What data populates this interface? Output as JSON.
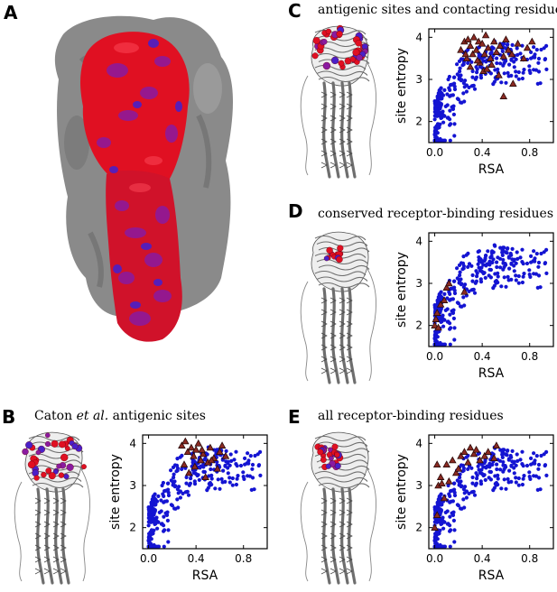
{
  "panels": {
    "A": {
      "letter": "A"
    },
    "B": {
      "letter": "B",
      "caption_pre": "Caton ",
      "caption_em": "et al.",
      "caption_post": " antigenic sites"
    },
    "C": {
      "letter": "C",
      "caption": "antigenic sites and contacting residues"
    },
    "D": {
      "letter": "D",
      "caption": "conserved receptor-binding residues"
    },
    "E": {
      "letter": "E",
      "caption": "all receptor-binding residues"
    }
  },
  "colors": {
    "blue_points": "#1414d2",
    "triangle_fill": "#8a2a22",
    "triangle_edge": "#2a0a0a",
    "surface_red": "#e01022",
    "surface_purple": "#8a1aa0",
    "surface_blue": "#4a20c8",
    "surface_grey": "#8a8a8a",
    "ribbon_grey": "#6e6e6e"
  },
  "chart_data": [
    {
      "panel": "B",
      "type": "scatter",
      "xlabel": "RSA",
      "ylabel": "site entropy",
      "xlim": [
        -0.05,
        1.0
      ],
      "ylim": [
        1.5,
        4.2
      ],
      "xticks": [
        "0.0",
        "0.4",
        "0.8"
      ],
      "xtick_values": [
        0.0,
        0.4,
        0.8
      ],
      "yticks": [
        "2",
        "3",
        "4"
      ],
      "ytick_values": [
        2,
        3,
        4
      ],
      "series": [
        {
          "name": "all sites",
          "marker": "circle",
          "color": "#1414d2",
          "points": "background"
        },
        {
          "name": "Caton et al. antigenic sites",
          "marker": "triangle",
          "color": "#8a2a22",
          "x": [
            0.28,
            0.31,
            0.33,
            0.36,
            0.38,
            0.4,
            0.42,
            0.44,
            0.46,
            0.5,
            0.52,
            0.55,
            0.58,
            0.6,
            0.62,
            0.65,
            0.3,
            0.34,
            0.39,
            0.45,
            0.48,
            0.53
          ],
          "y": [
            3.95,
            4.05,
            3.8,
            3.9,
            3.7,
            3.85,
            4.0,
            3.6,
            3.75,
            3.55,
            3.9,
            3.65,
            3.4,
            3.8,
            3.95,
            3.7,
            3.5,
            3.3,
            3.45,
            3.85,
            3.2,
            3.6
          ]
        }
      ]
    },
    {
      "panel": "C",
      "type": "scatter",
      "xlabel": "RSA",
      "ylabel": "site entropy",
      "xlim": [
        -0.05,
        1.0
      ],
      "ylim": [
        1.5,
        4.2
      ],
      "xticks": [
        "0.0",
        "0.4",
        "0.8"
      ],
      "xtick_values": [
        0.0,
        0.4,
        0.8
      ],
      "yticks": [
        "2",
        "3",
        "4"
      ],
      "ytick_values": [
        2,
        3,
        4
      ],
      "series": [
        {
          "name": "all sites",
          "marker": "circle",
          "color": "#1414d2",
          "points": "background"
        },
        {
          "name": "antigenic sites and contacting residues",
          "marker": "triangle",
          "color": "#8a2a22",
          "x": [
            0.22,
            0.25,
            0.27,
            0.28,
            0.3,
            0.32,
            0.33,
            0.35,
            0.37,
            0.38,
            0.4,
            0.42,
            0.43,
            0.45,
            0.47,
            0.5,
            0.52,
            0.55,
            0.58,
            0.6,
            0.62,
            0.65,
            0.7,
            0.75,
            0.78,
            0.82,
            0.3,
            0.36,
            0.41,
            0.48,
            0.54,
            0.58,
            0.66,
            0.26,
            0.44
          ],
          "y": [
            3.7,
            3.9,
            3.5,
            3.95,
            3.8,
            3.6,
            4.0,
            3.7,
            3.9,
            3.4,
            3.85,
            3.6,
            4.05,
            3.75,
            3.5,
            3.9,
            3.65,
            3.8,
            3.55,
            3.95,
            3.7,
            3.6,
            3.85,
            3.5,
            3.75,
            3.9,
            3.3,
            3.45,
            3.2,
            3.35,
            3.1,
            2.6,
            2.9,
            3.6,
            3.25
          ]
        }
      ]
    },
    {
      "panel": "D",
      "type": "scatter",
      "xlabel": "RSA",
      "ylabel": "site entropy",
      "xlim": [
        -0.05,
        1.0
      ],
      "ylim": [
        1.5,
        4.2
      ],
      "xticks": [
        "0.0",
        "0.4",
        "0.8"
      ],
      "xtick_values": [
        0.0,
        0.4,
        0.8
      ],
      "yticks": [
        "2",
        "3",
        "4"
      ],
      "ytick_values": [
        2,
        3,
        4
      ],
      "series": [
        {
          "name": "all sites",
          "marker": "circle",
          "color": "#1414d2",
          "points": "background"
        },
        {
          "name": "conserved receptor-binding residues",
          "marker": "triangle",
          "color": "#8a2a22",
          "x": [
            0.0,
            0.01,
            0.02,
            0.03,
            0.05,
            0.08,
            0.1,
            0.12,
            0.25
          ],
          "y": [
            2.0,
            2.15,
            2.3,
            1.95,
            2.5,
            2.6,
            2.9,
            3.0,
            2.8
          ]
        }
      ]
    },
    {
      "panel": "E",
      "type": "scatter",
      "xlabel": "RSA",
      "ylabel": "site entropy",
      "xlim": [
        -0.05,
        1.0
      ],
      "ylim": [
        1.5,
        4.2
      ],
      "xticks": [
        "0.0",
        "0.4",
        "0.8"
      ],
      "xtick_values": [
        0.0,
        0.4,
        0.8
      ],
      "yticks": [
        "2",
        "3",
        "4"
      ],
      "ytick_values": [
        2,
        3,
        4
      ],
      "series": [
        {
          "name": "all sites",
          "marker": "circle",
          "color": "#1414d2",
          "points": "background"
        },
        {
          "name": "all receptor-binding residues",
          "marker": "triangle",
          "color": "#8a2a22",
          "x": [
            0.0,
            0.02,
            0.03,
            0.05,
            0.08,
            0.1,
            0.12,
            0.15,
            0.18,
            0.2,
            0.22,
            0.25,
            0.28,
            0.3,
            0.33,
            0.35,
            0.38,
            0.42,
            0.45,
            0.5,
            0.52,
            0.02,
            0.06
          ],
          "y": [
            2.0,
            2.3,
            3.0,
            3.2,
            2.7,
            3.5,
            3.1,
            3.6,
            3.3,
            3.4,
            3.7,
            3.8,
            3.55,
            3.9,
            3.75,
            3.85,
            3.6,
            3.7,
            3.8,
            3.65,
            3.95,
            3.5,
            3.05
          ]
        }
      ]
    }
  ]
}
